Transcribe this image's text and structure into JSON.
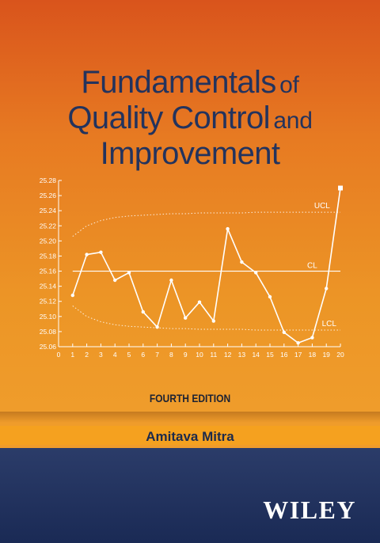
{
  "book": {
    "title_line1_big": "Fundamentals",
    "title_line1_small": "of",
    "title_line2_big": "Quality Control",
    "title_line2_small": "and",
    "title_line3_big": "Improvement",
    "edition": "FOURTH EDITION",
    "author": "Amitava Mitra",
    "publisher": "WILEY"
  },
  "colors": {
    "title_text": "#23335d",
    "cover_top": "#d9541c",
    "cover_mid": "#ec9526",
    "author_band": "#f5a11f",
    "bottom_band": "#1f2f5b",
    "chart_line": "#ffffff"
  },
  "chart_data": {
    "type": "line",
    "x": [
      1,
      2,
      3,
      4,
      5,
      6,
      7,
      8,
      9,
      10,
      11,
      12,
      13,
      14,
      15,
      16,
      17,
      18,
      19,
      20
    ],
    "values": [
      25.128,
      25.182,
      25.185,
      25.148,
      25.158,
      25.106,
      25.086,
      25.148,
      25.098,
      25.119,
      25.094,
      25.216,
      25.172,
      25.158,
      25.126,
      25.079,
      25.065,
      25.072,
      25.137,
      25.27
    ],
    "xlim": [
      0,
      20
    ],
    "ylim": [
      25.06,
      25.28
    ],
    "x_ticks": [
      "0",
      "1",
      "2",
      "3",
      "4",
      "5",
      "6",
      "7",
      "8",
      "9",
      "10",
      "11",
      "12",
      "13",
      "14",
      "15",
      "16",
      "17",
      "18",
      "19",
      "20"
    ],
    "y_ticks": [
      "25.06",
      "25.08",
      "25.10",
      "25.12",
      "25.14",
      "25.16",
      "25.18",
      "25.20",
      "25.22",
      "25.24",
      "25.26",
      "25.28"
    ],
    "center_line": {
      "label": "CL",
      "value": 25.16
    },
    "upper_limit": {
      "label": "UCL",
      "values": [
        25.206,
        25.22,
        25.227,
        25.231,
        25.233,
        25.234,
        25.235,
        25.236,
        25.236,
        25.237,
        25.237,
        25.237,
        25.237,
        25.238,
        25.238,
        25.238,
        25.238,
        25.238,
        25.238,
        25.238
      ]
    },
    "lower_limit": {
      "label": "LCL",
      "values": [
        25.114,
        25.1,
        25.093,
        25.089,
        25.087,
        25.086,
        25.085,
        25.084,
        25.084,
        25.083,
        25.083,
        25.083,
        25.083,
        25.082,
        25.082,
        25.082,
        25.082,
        25.082,
        25.082,
        25.082
      ]
    },
    "grid": false,
    "title": "",
    "xlabel": "",
    "ylabel": ""
  }
}
